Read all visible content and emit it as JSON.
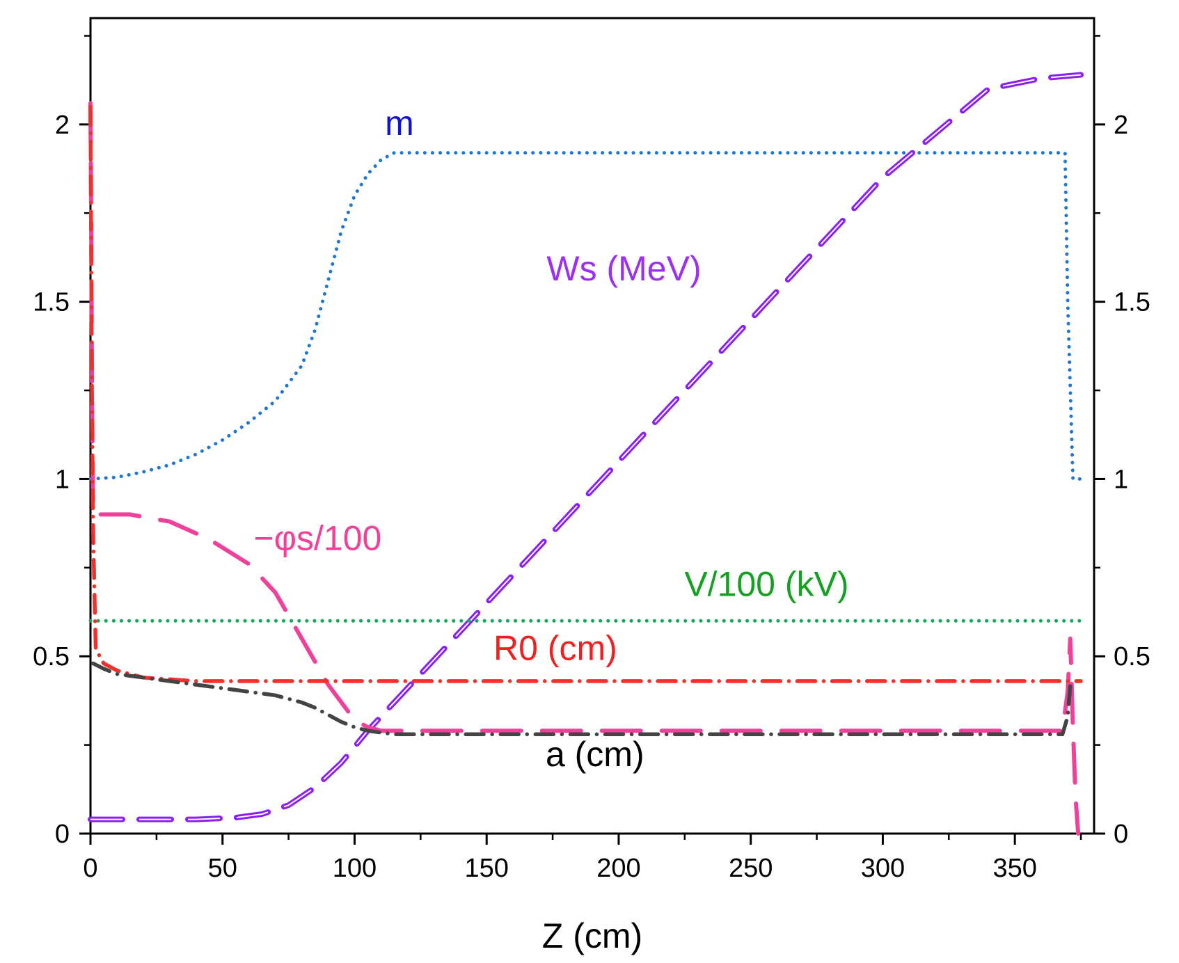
{
  "chart_data": {
    "type": "line",
    "title": "",
    "xlabel": "Z (cm)",
    "ylabel": "",
    "xlim": [
      0,
      380
    ],
    "ylim": [
      0,
      2.3
    ],
    "x_ticks": [
      0,
      50,
      100,
      150,
      200,
      250,
      300,
      350
    ],
    "y_ticks": [
      0,
      0.5,
      1,
      1.5,
      2
    ],
    "y_tick_labels": [
      "0",
      "0.5",
      "1",
      "1.5",
      "2"
    ],
    "right_y_tick_labels": [
      "0",
      "0.5",
      "1",
      "1.5",
      "2"
    ],
    "series": [
      {
        "name": "m",
        "color": "#1f77d4",
        "style": "dotted",
        "x": [
          0,
          10,
          20,
          30,
          40,
          50,
          60,
          70,
          80,
          85,
          90,
          95,
          100,
          105,
          110,
          115,
          120,
          200,
          300,
          368,
          369,
          370,
          372,
          374,
          376
        ],
        "y": [
          1.0,
          1.005,
          1.02,
          1.04,
          1.07,
          1.11,
          1.16,
          1.22,
          1.32,
          1.42,
          1.56,
          1.7,
          1.8,
          1.86,
          1.9,
          1.92,
          1.92,
          1.92,
          1.92,
          1.92,
          1.92,
          1.5,
          1.0,
          1.0,
          1.0
        ]
      },
      {
        "name": "Ws (MeV)",
        "color": "#8a1ff0",
        "style": "dashed-double",
        "x": [
          0,
          20,
          40,
          55,
          65,
          75,
          85,
          95,
          105,
          120,
          150,
          200,
          250,
          300,
          340,
          360,
          375
        ],
        "y": [
          0.04,
          0.04,
          0.04,
          0.045,
          0.055,
          0.08,
          0.13,
          0.2,
          0.29,
          0.41,
          0.65,
          1.05,
          1.45,
          1.85,
          2.1,
          2.13,
          2.14
        ]
      },
      {
        "name": "−φs/100",
        "color": "#f0409a",
        "style": "longdash",
        "x": [
          0,
          0.3,
          0.6,
          1.0,
          5,
          15,
          30,
          45,
          60,
          70,
          80,
          90,
          100,
          105,
          110,
          120,
          200,
          300,
          368,
          370,
          371,
          372,
          373,
          374
        ],
        "y": [
          2.06,
          1.7,
          1.2,
          0.9,
          0.9,
          0.9,
          0.88,
          0.83,
          0.76,
          0.68,
          0.55,
          0.42,
          0.32,
          0.3,
          0.29,
          0.29,
          0.29,
          0.29,
          0.29,
          0.4,
          0.55,
          0.3,
          0.1,
          0.0
        ]
      },
      {
        "name": "V/100 (kV)",
        "color": "#14a85a",
        "style": "dotted",
        "x": [
          0,
          375
        ],
        "y": [
          0.6,
          0.6
        ]
      },
      {
        "name": "R0 (cm)",
        "color": "#f0302a",
        "style": "dashdot",
        "x": [
          0,
          0.5,
          1,
          2,
          5,
          10,
          20,
          30,
          40,
          50,
          60,
          80,
          100,
          150,
          250,
          350,
          375
        ],
        "y": [
          2.05,
          1.3,
          0.85,
          0.52,
          0.48,
          0.46,
          0.44,
          0.435,
          0.43,
          0.43,
          0.43,
          0.43,
          0.43,
          0.43,
          0.43,
          0.43,
          0.43
        ]
      },
      {
        "name": "a (cm)",
        "color": "#444444",
        "style": "dashdot",
        "x": [
          1,
          5,
          10,
          20,
          30,
          40,
          50,
          60,
          70,
          80,
          85,
          90,
          95,
          100,
          105,
          110,
          115,
          120,
          200,
          300,
          368,
          370,
          371
        ],
        "y": [
          0.48,
          0.465,
          0.45,
          0.44,
          0.43,
          0.42,
          0.41,
          0.4,
          0.39,
          0.37,
          0.355,
          0.335,
          0.315,
          0.3,
          0.29,
          0.285,
          0.28,
          0.28,
          0.28,
          0.28,
          0.28,
          0.33,
          0.42
        ]
      }
    ],
    "annotations": [
      {
        "text": "m",
        "series": "m",
        "x": 117,
        "y": 1.97,
        "color": "#1010e0"
      },
      {
        "text": "Ws (MeV)",
        "series": "Ws (MeV)",
        "x": 202,
        "y": 1.56,
        "color": "#9b30f0"
      },
      {
        "text": "−φs/100",
        "series": "−φs/100",
        "x": 86,
        "y": 0.8,
        "color": "#f0409a"
      },
      {
        "text": "V/100 (kV)",
        "series": "V/100 (kV)",
        "x": 256,
        "y": 0.67,
        "color": "#14a020"
      },
      {
        "text": "R0 (cm)",
        "series": "R0 (cm)",
        "x": 176,
        "y": 0.49,
        "color": "#f02020"
      },
      {
        "text": "a (cm)",
        "series": "a (cm)",
        "x": 191,
        "y": 0.19,
        "color": "#000000"
      }
    ],
    "grid": false,
    "legend": "none"
  }
}
